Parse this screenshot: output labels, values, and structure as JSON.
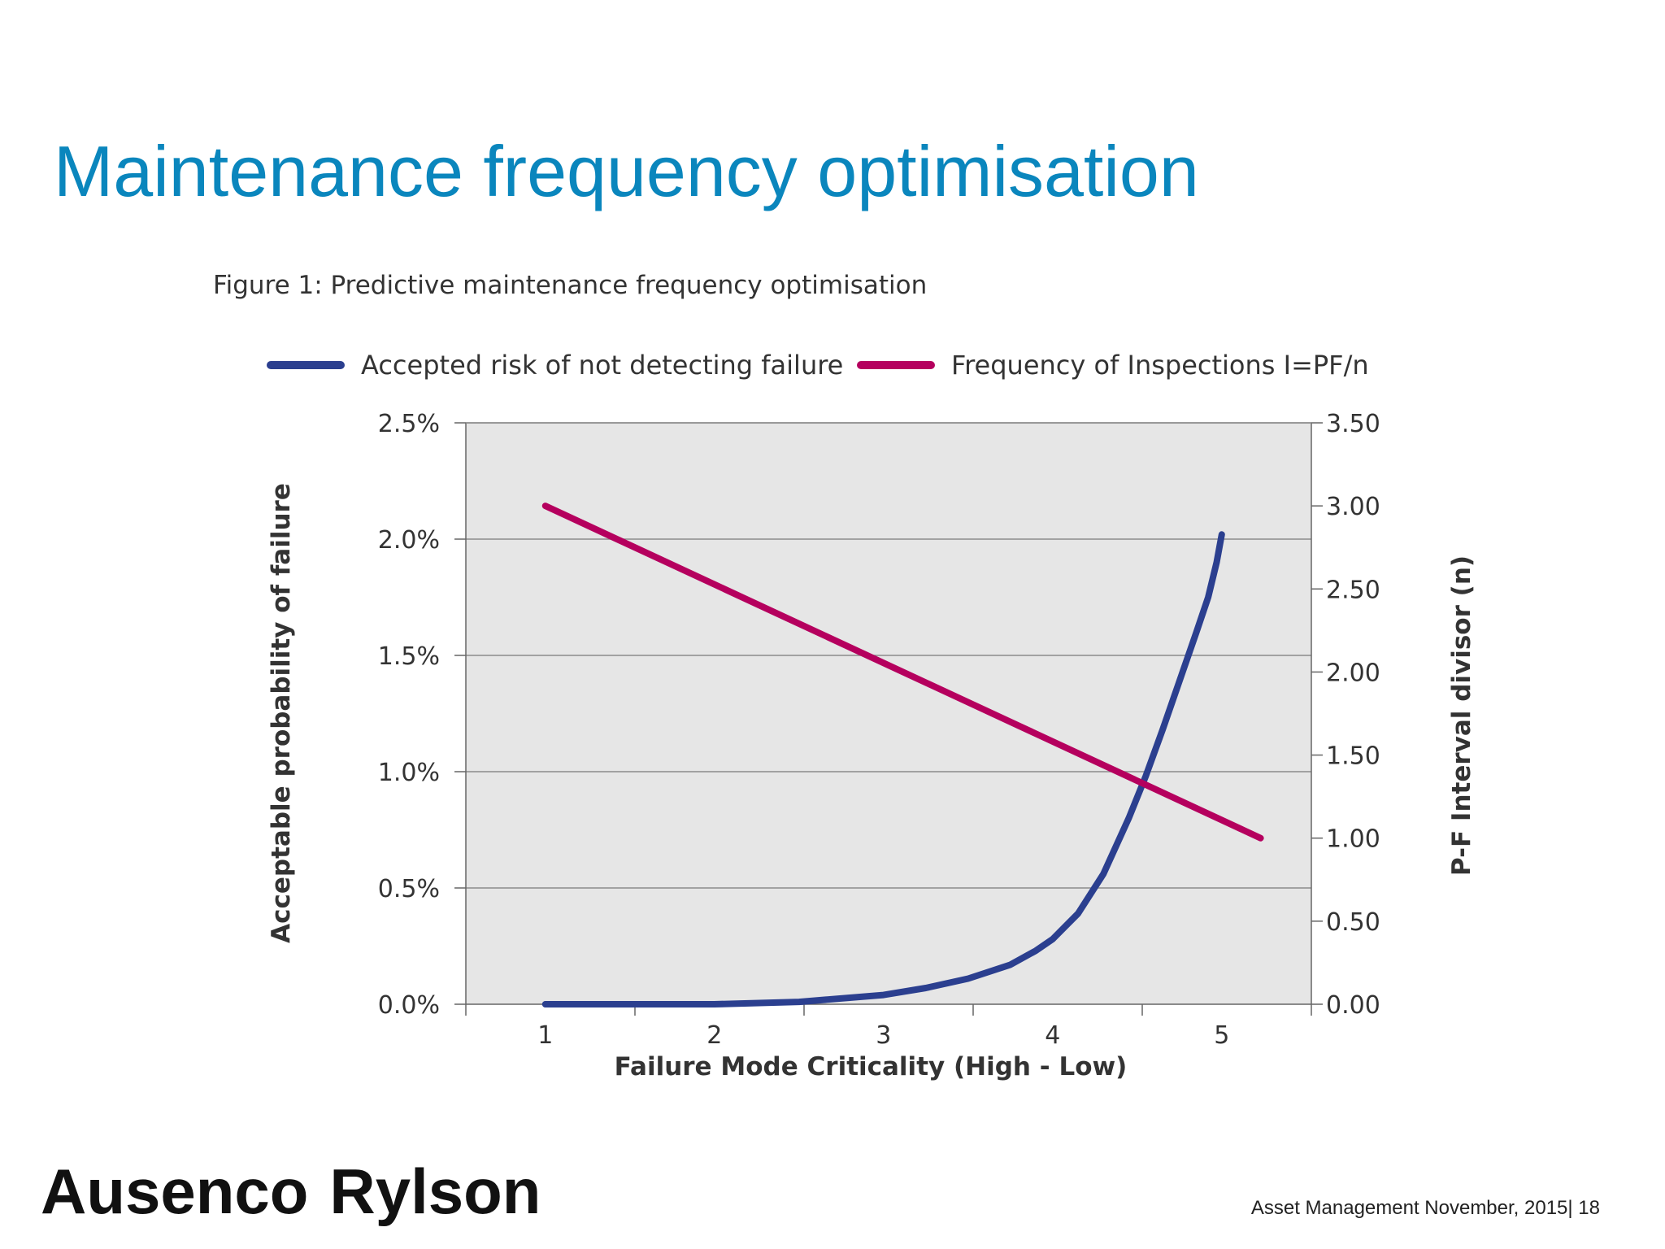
{
  "slide": {
    "title": "Maintenance frequency optimisation",
    "footer": "Asset Management  November, 2015|  18",
    "logo_text": "Ausenco Rylson",
    "logo_parts": [
      "Ausenco",
      "Rylson"
    ]
  },
  "colors": {
    "title": "#0a86bd",
    "series_risk": "#2b3f8f",
    "series_frequency": "#b5005e",
    "plot_background": "#e6e6e6",
    "gridline": "#8c8c8c"
  },
  "chart_data": {
    "type": "line",
    "title": "Figure 1: Predictive maintenance frequency optimisation",
    "xlabel": "Failure Mode Criticality (High - Low)",
    "ylabel": "Acceptable probability of failure",
    "y2label": "P-F Interval divisor (n)",
    "xlim": [
      0.53,
      5.53
    ],
    "ylim": [
      0,
      2.5
    ],
    "y2lim": [
      0,
      3.5
    ],
    "x_ticks": [
      "1",
      "2",
      "3",
      "4",
      "5"
    ],
    "y_ticks": [
      "0.0%",
      "0.5%",
      "1.0%",
      "1.5%",
      "2.0%",
      "2.5%"
    ],
    "y2_ticks": [
      "0.00",
      "0.50",
      "1.00",
      "1.50",
      "2.00",
      "2.50",
      "3.00",
      "3.50"
    ],
    "grid": true,
    "legend_position": "top",
    "series": [
      {
        "name": "Accepted risk of not detecting failure",
        "axis": "left",
        "unit": "%",
        "x": [
          1.0,
          1.5,
          2.0,
          2.5,
          3.0,
          3.25,
          3.5,
          3.75,
          3.9,
          4.0,
          4.15,
          4.3,
          4.45,
          4.55,
          4.65,
          4.75,
          4.85,
          4.92,
          4.97,
          5.0
        ],
        "values": [
          0.0,
          0.0,
          0.0,
          0.01,
          0.04,
          0.07,
          0.11,
          0.17,
          0.23,
          0.28,
          0.39,
          0.56,
          0.8,
          0.98,
          1.18,
          1.39,
          1.6,
          1.75,
          1.9,
          2.02
        ]
      },
      {
        "name": "Frequency of Inspections I=PF/n",
        "axis": "right",
        "x": [
          1.0,
          5.23
        ],
        "values": [
          3.0,
          1.0
        ]
      }
    ]
  }
}
